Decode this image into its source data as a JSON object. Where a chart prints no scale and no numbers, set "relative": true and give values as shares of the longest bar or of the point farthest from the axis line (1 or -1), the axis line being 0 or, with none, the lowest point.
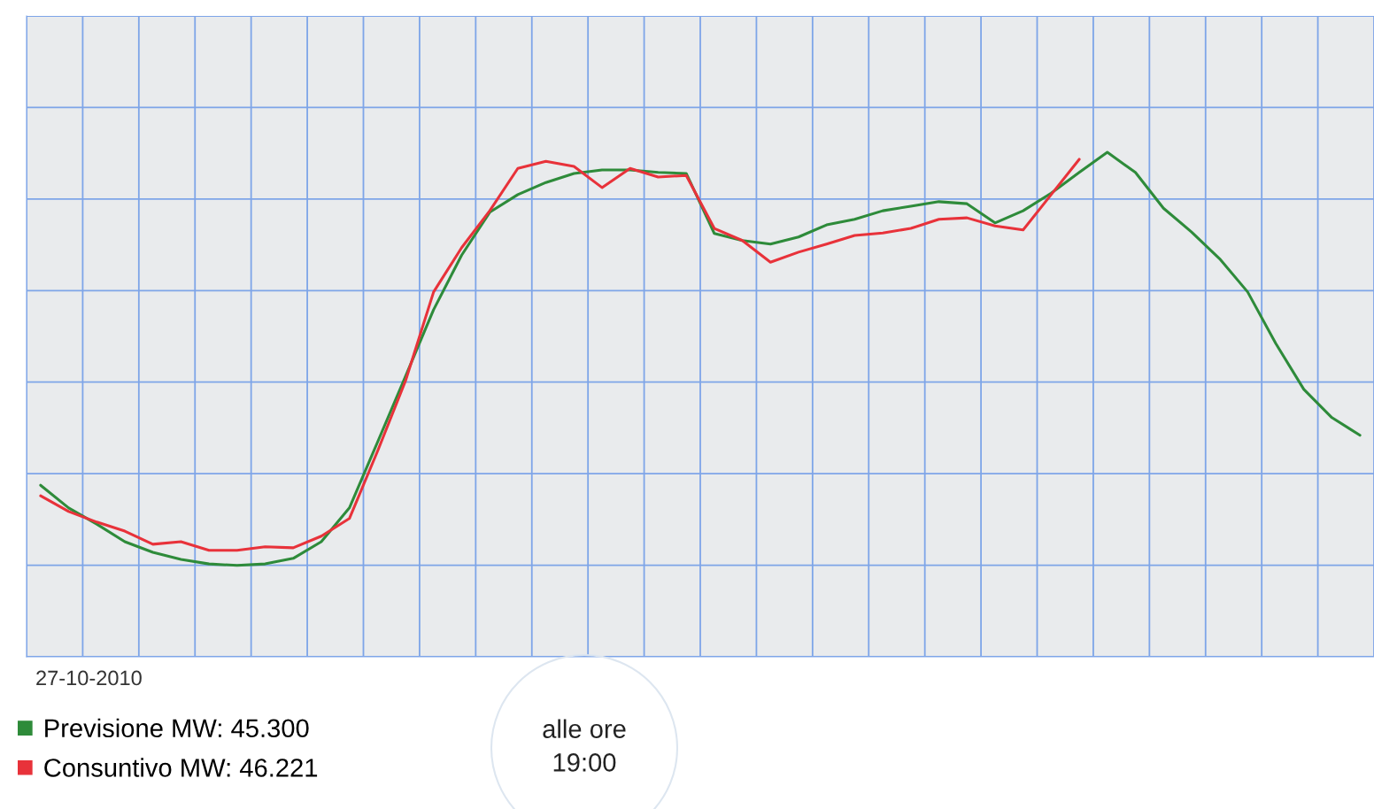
{
  "chart_data": {
    "type": "line",
    "relative": true,
    "categories": [
      null,
      null,
      null,
      null,
      null,
      null,
      null,
      null,
      null,
      null,
      null,
      null,
      null,
      null,
      null,
      null,
      null,
      null,
      null,
      null,
      null,
      null,
      null,
      null,
      null,
      null,
      null,
      null,
      null,
      null,
      null,
      null,
      null,
      null,
      null,
      null,
      null,
      null,
      null,
      null,
      null,
      null,
      null,
      null,
      null,
      null,
      null,
      null
    ],
    "series": [
      {
        "name": "Previsione MW: 45.300",
        "color": "#2e8b3a",
        "values": [
          0.34,
          0.295,
          0.263,
          0.228,
          0.207,
          0.193,
          0.184,
          0.181,
          0.184,
          0.195,
          0.228,
          0.295,
          0.425,
          0.556,
          0.688,
          0.796,
          0.881,
          0.916,
          0.94,
          0.958,
          0.965,
          0.965,
          0.96,
          0.958,
          0.839,
          0.825,
          0.818,
          0.832,
          0.856,
          0.867,
          0.884,
          0.893,
          0.902,
          0.898,
          0.86,
          0.884,
          0.919,
          0.96,
          1.0,
          0.96,
          0.889,
          0.842,
          0.789,
          0.723,
          0.621,
          0.53,
          0.474,
          0.439
        ]
      },
      {
        "name": "Consuntivo MW: 46.221",
        "color": "#e8323a",
        "values": [
          0.319,
          0.288,
          0.267,
          0.249,
          0.223,
          0.228,
          0.211,
          0.211,
          0.218,
          0.216,
          0.239,
          0.274,
          0.407,
          0.547,
          0.723,
          0.811,
          0.884,
          0.968,
          0.982,
          0.972,
          0.93,
          0.968,
          0.951,
          0.954,
          0.849,
          0.825,
          0.782,
          0.802,
          0.818,
          0.835,
          0.84,
          0.849,
          0.867,
          0.87,
          0.854,
          0.846,
          0.916,
          0.986,
          null,
          null,
          null,
          null,
          null,
          null,
          null,
          null,
          null,
          null
        ]
      }
    ],
    "grid": true,
    "legend": "bottom left",
    "annotations": [
      "27-10-2010",
      "alle ore\n19:00"
    ]
  }
}
